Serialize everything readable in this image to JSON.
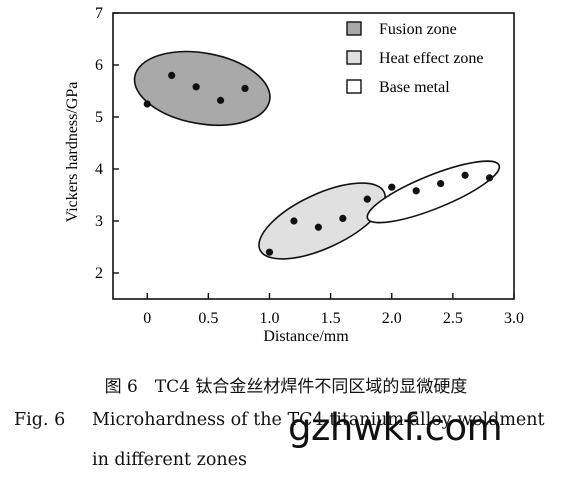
{
  "chart_data": {
    "type": "scatter",
    "xlabel": "Distance/mm",
    "ylabel": "Vickers hardness/GPa",
    "xlim": [
      -0.28,
      3.0
    ],
    "ylim": [
      1.5,
      7.0
    ],
    "xticks": [
      0,
      0.5,
      1.0,
      1.5,
      2.0,
      2.5,
      3.0
    ],
    "xtick_labels": [
      "0",
      "0.5",
      "1.0",
      "1.5",
      "2.0",
      "2.5",
      "3.0"
    ],
    "yticks": [
      2,
      3,
      4,
      5,
      6,
      7
    ],
    "ytick_labels": [
      "2",
      "3",
      "4",
      "5",
      "6",
      "7"
    ],
    "legend_position": "top-right",
    "series": [
      {
        "name": "Fusion zone",
        "fill": "#a9a9a9",
        "x": [
          0.0,
          0.2,
          0.4,
          0.6,
          0.8
        ],
        "y": [
          5.25,
          5.8,
          5.58,
          5.32,
          5.55
        ],
        "ellipse": {
          "cx": 0.45,
          "cy": 5.55,
          "rx": 0.56,
          "ry": 0.68,
          "angle": 10
        }
      },
      {
        "name": "Heat effect zone",
        "fill": "#e0e0e0",
        "x": [
          1.0,
          1.2,
          1.4,
          1.6,
          1.8
        ],
        "y": [
          2.4,
          3.0,
          2.88,
          3.05,
          3.42
        ],
        "ellipse": {
          "cx": 1.43,
          "cy": 3.0,
          "rx": 0.56,
          "ry": 0.52,
          "angle": -25
        }
      },
      {
        "name": "Base metal",
        "fill": "#ffffff",
        "x": [
          2.0,
          2.2,
          2.4,
          2.6,
          2.8
        ],
        "y": [
          3.65,
          3.58,
          3.72,
          3.88,
          3.83
        ],
        "ellipse": {
          "cx": 2.34,
          "cy": 3.56,
          "rx": 0.58,
          "ry": 0.32,
          "angle": -22
        }
      }
    ]
  },
  "caption": {
    "cn": "图 6　TC4 钛合金丝材焊件不同区域的显微硬度",
    "en_label": "Fig. 6",
    "en_line1": "Microhardness of the TC4 titanium alloy weldment",
    "en_line2": "in different zones"
  },
  "watermark": "gzhwkf.com"
}
